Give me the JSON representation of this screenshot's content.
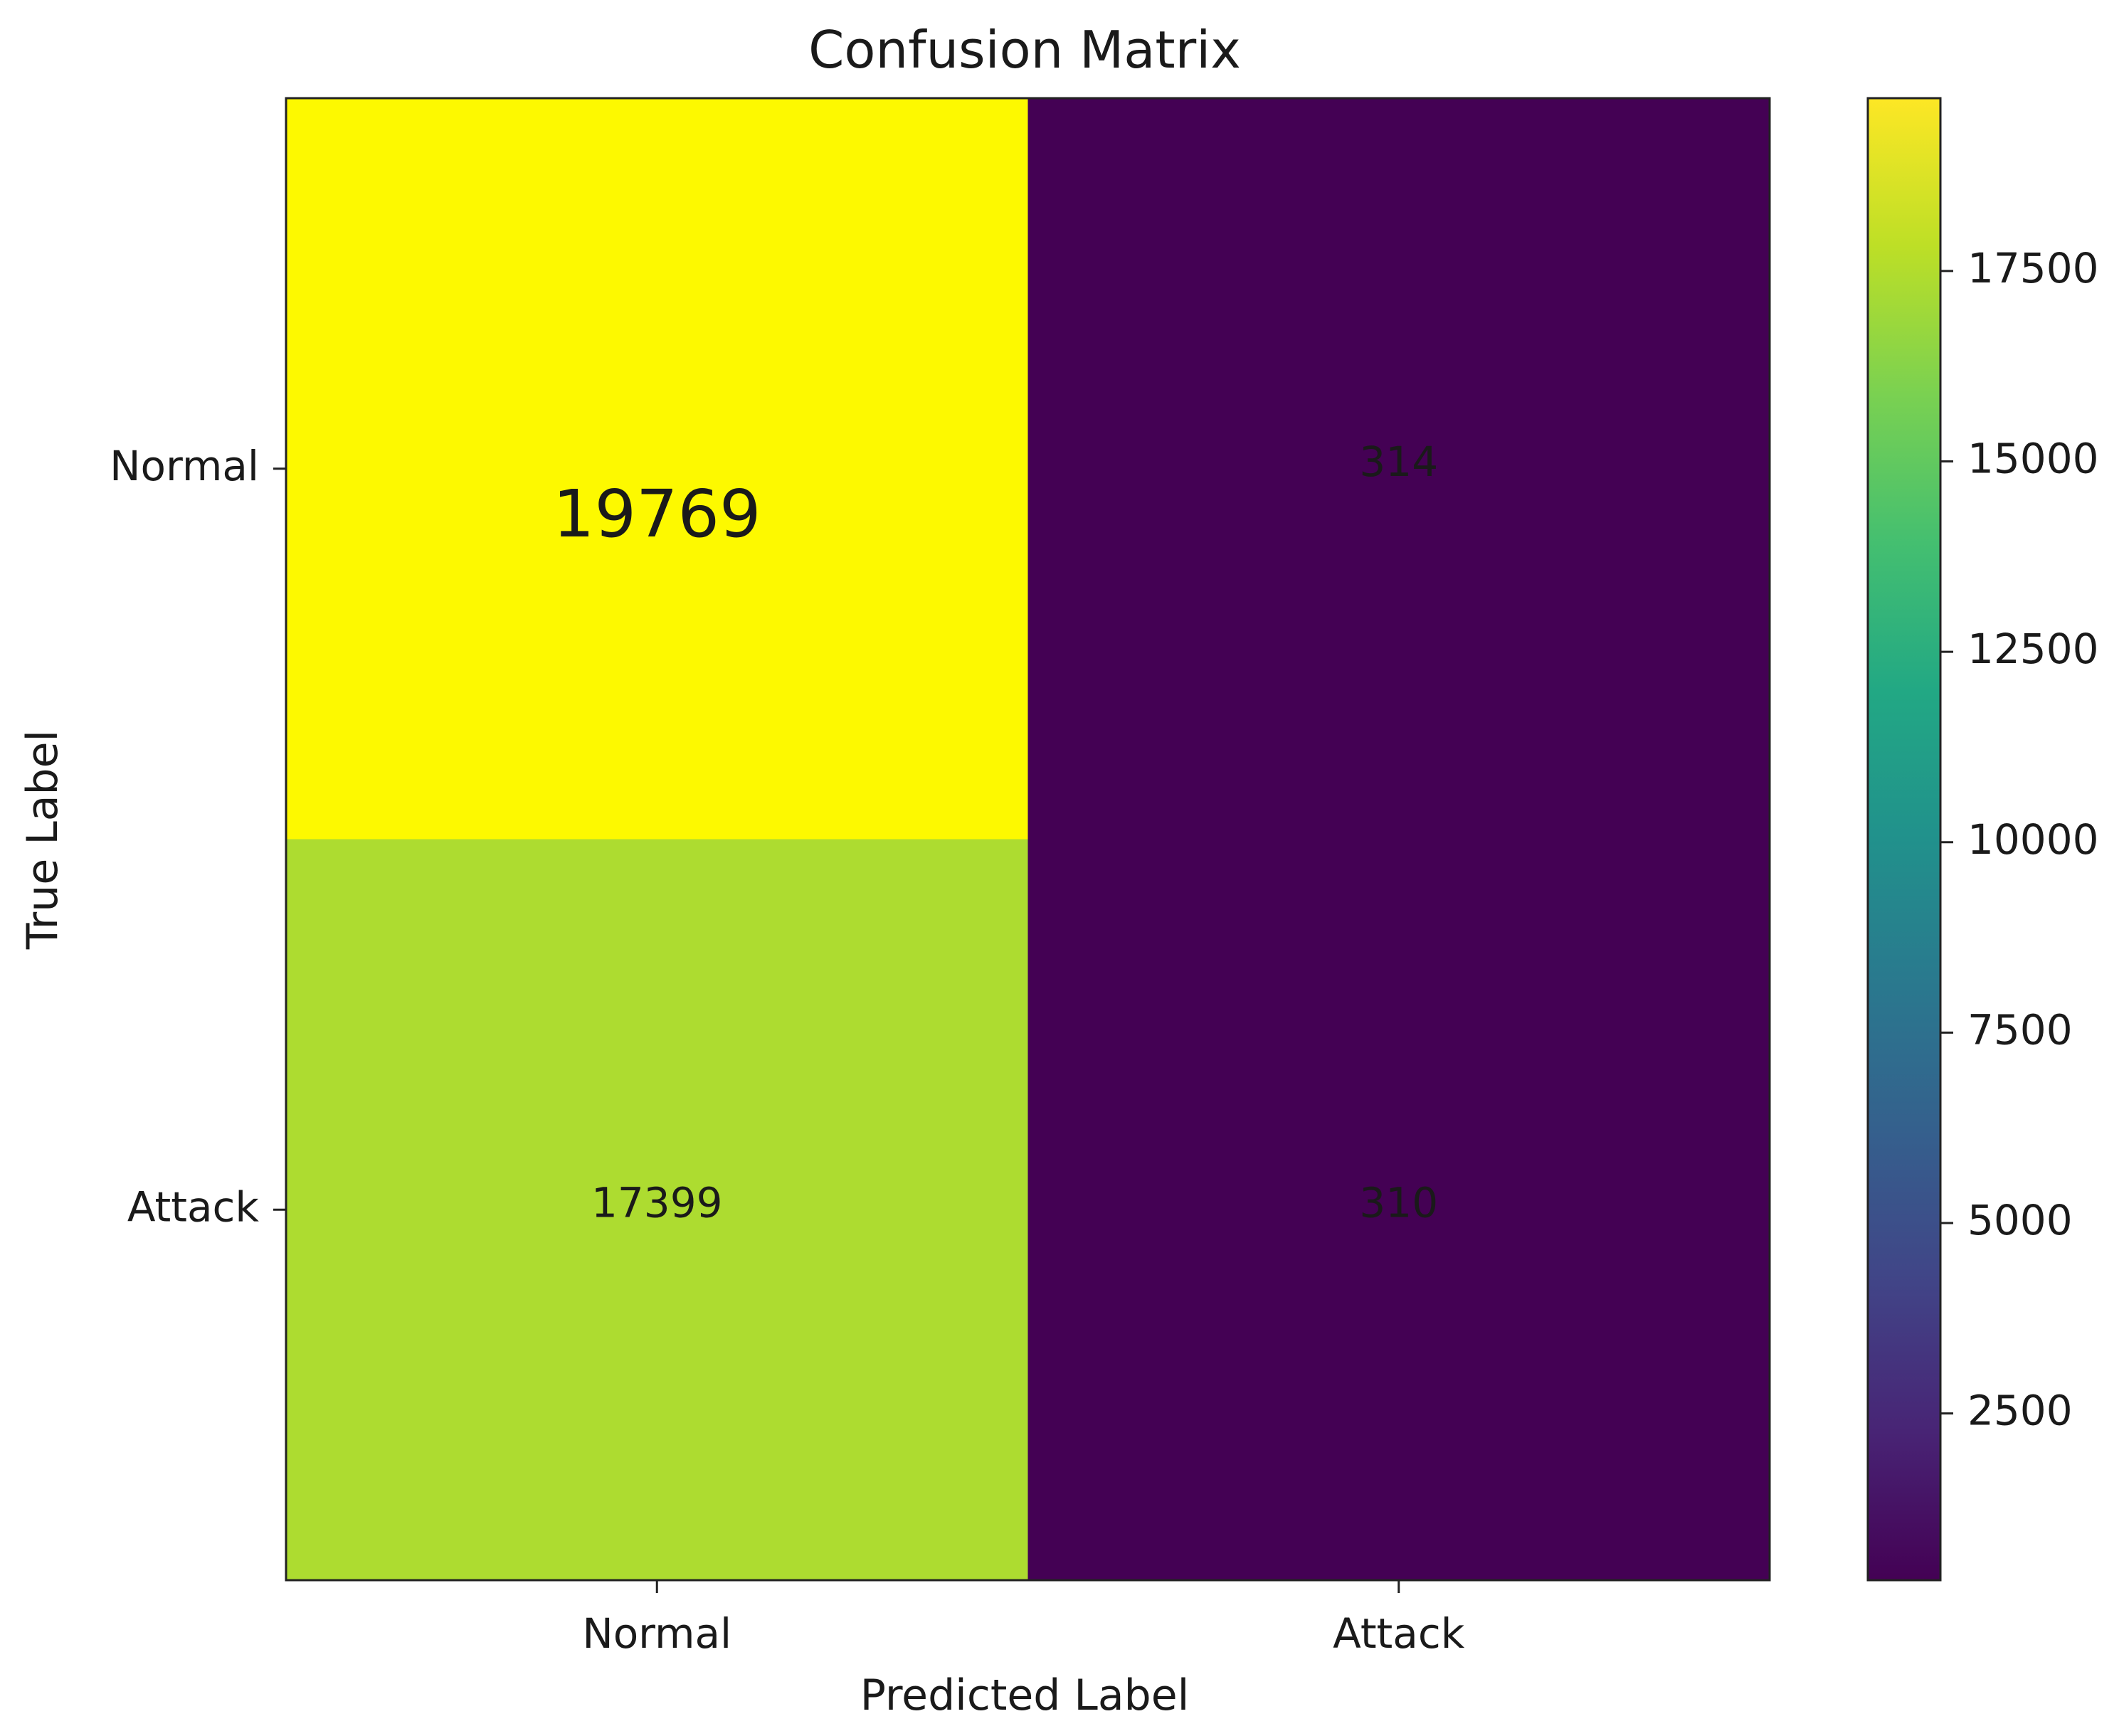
{
  "chart_data": {
    "type": "heatmap",
    "title": "Confusion Matrix",
    "xlabel": "Predicted Label",
    "ylabel": "True Label",
    "x_categories": [
      "Normal",
      "Attack"
    ],
    "y_categories": [
      "Normal",
      "Attack"
    ],
    "matrix": [
      [
        19769,
        314
      ],
      [
        17399,
        310
      ]
    ],
    "colormap": "viridis",
    "colorbar": {
      "min": 310,
      "max": 19769,
      "ticks": [
        2500,
        5000,
        7500,
        10000,
        12500,
        15000,
        17500
      ]
    },
    "grid": false,
    "colors": {
      "cell_normal_normal": "#fdf900",
      "cell_normal_attack": "#440154",
      "cell_attack_normal": "#addc30",
      "cell_attack_attack": "#440154",
      "label_dark": "#440154",
      "label_light": "#fde725"
    }
  }
}
